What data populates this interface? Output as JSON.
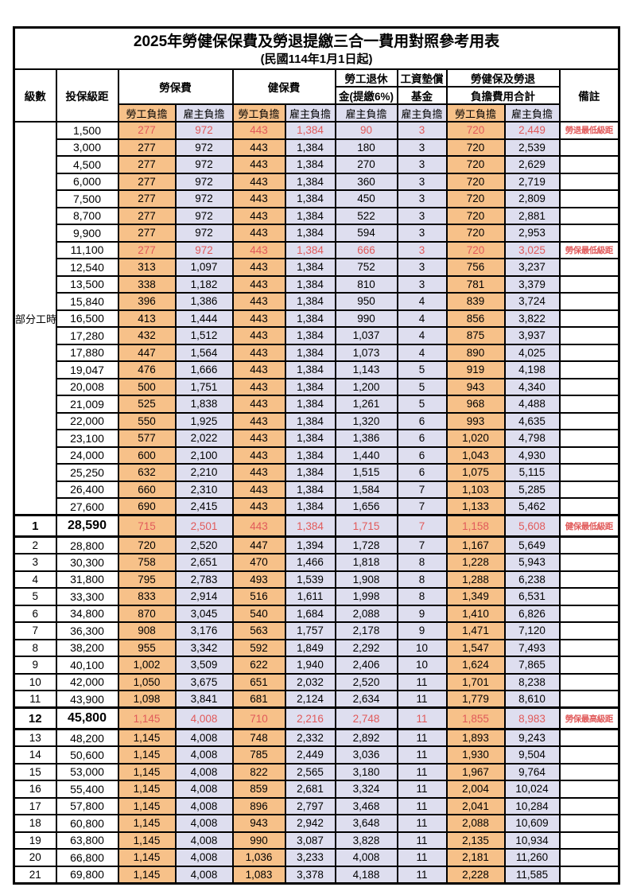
{
  "title": "2025年勞健保保費及勞退提繳三合一費用對照參考用表",
  "subtitle": "(民國114年1月1日起)",
  "colors": {
    "employee_column_bg": "#f7c189",
    "employer_column_bg": "#dedeef",
    "highlight_text": "#e15a5a",
    "border": "#000000"
  },
  "header": {
    "level": "級數",
    "bracket": "投保級距",
    "labor_ins": "勞保費",
    "health_ins": "健保費",
    "pension_l1": "勞工退休",
    "pension_l2": "金(提繳6%)",
    "wage_fund_l1": "工資墊償",
    "wage_fund_l2": "基金",
    "total_l1": "勞健保及勞退",
    "total_l2": "負擔費用合計",
    "note": "備註",
    "employee": "勞工負擔",
    "employer": "雇主負擔"
  },
  "table": {
    "part_time_label": "部分工時",
    "part_time_rowspan": 23,
    "rows": [
      {
        "level": "",
        "bracket": "1,500",
        "v": [
          "277",
          "972",
          "443",
          "1,384",
          "90",
          "3",
          "720",
          "2,449"
        ],
        "note": "勞退最低級距",
        "red": true
      },
      {
        "level": "",
        "bracket": "3,000",
        "v": [
          "277",
          "972",
          "443",
          "1,384",
          "180",
          "3",
          "720",
          "2,539"
        ]
      },
      {
        "level": "",
        "bracket": "4,500",
        "v": [
          "277",
          "972",
          "443",
          "1,384",
          "270",
          "3",
          "720",
          "2,629"
        ]
      },
      {
        "level": "",
        "bracket": "6,000",
        "v": [
          "277",
          "972",
          "443",
          "1,384",
          "360",
          "3",
          "720",
          "2,719"
        ]
      },
      {
        "level": "",
        "bracket": "7,500",
        "v": [
          "277",
          "972",
          "443",
          "1,384",
          "450",
          "3",
          "720",
          "2,809"
        ]
      },
      {
        "level": "",
        "bracket": "8,700",
        "v": [
          "277",
          "972",
          "443",
          "1,384",
          "522",
          "3",
          "720",
          "2,881"
        ]
      },
      {
        "level": "",
        "bracket": "9,900",
        "v": [
          "277",
          "972",
          "443",
          "1,384",
          "594",
          "3",
          "720",
          "2,953"
        ]
      },
      {
        "level": "",
        "bracket": "11,100",
        "v": [
          "277",
          "972",
          "443",
          "1,384",
          "666",
          "3",
          "720",
          "3,025"
        ],
        "note": "勞保最低級距",
        "red": true
      },
      {
        "level": "",
        "bracket": "12,540",
        "v": [
          "313",
          "1,097",
          "443",
          "1,384",
          "752",
          "3",
          "756",
          "3,237"
        ]
      },
      {
        "level": "",
        "bracket": "13,500",
        "v": [
          "338",
          "1,182",
          "443",
          "1,384",
          "810",
          "3",
          "781",
          "3,379"
        ]
      },
      {
        "level": "",
        "bracket": "15,840",
        "v": [
          "396",
          "1,386",
          "443",
          "1,384",
          "950",
          "4",
          "839",
          "3,724"
        ]
      },
      {
        "level": "",
        "bracket": "16,500",
        "v": [
          "413",
          "1,444",
          "443",
          "1,384",
          "990",
          "4",
          "856",
          "3,822"
        ]
      },
      {
        "level": "",
        "bracket": "17,280",
        "v": [
          "432",
          "1,512",
          "443",
          "1,384",
          "1,037",
          "4",
          "875",
          "3,937"
        ]
      },
      {
        "level": "",
        "bracket": "17,880",
        "v": [
          "447",
          "1,564",
          "443",
          "1,384",
          "1,073",
          "4",
          "890",
          "4,025"
        ]
      },
      {
        "level": "",
        "bracket": "19,047",
        "v": [
          "476",
          "1,666",
          "443",
          "1,384",
          "1,143",
          "5",
          "919",
          "4,198"
        ]
      },
      {
        "level": "",
        "bracket": "20,008",
        "v": [
          "500",
          "1,751",
          "443",
          "1,384",
          "1,200",
          "5",
          "943",
          "4,340"
        ]
      },
      {
        "level": "",
        "bracket": "21,009",
        "v": [
          "525",
          "1,838",
          "443",
          "1,384",
          "1,261",
          "5",
          "968",
          "4,488"
        ]
      },
      {
        "level": "",
        "bracket": "22,000",
        "v": [
          "550",
          "1,925",
          "443",
          "1,384",
          "1,320",
          "6",
          "993",
          "4,635"
        ]
      },
      {
        "level": "",
        "bracket": "23,100",
        "v": [
          "577",
          "2,022",
          "443",
          "1,384",
          "1,386",
          "6",
          "1,020",
          "4,798"
        ]
      },
      {
        "level": "",
        "bracket": "24,000",
        "v": [
          "600",
          "2,100",
          "443",
          "1,384",
          "1,440",
          "6",
          "1,043",
          "4,930"
        ]
      },
      {
        "level": "",
        "bracket": "25,250",
        "v": [
          "632",
          "2,210",
          "443",
          "1,384",
          "1,515",
          "6",
          "1,075",
          "5,115"
        ]
      },
      {
        "level": "",
        "bracket": "26,400",
        "v": [
          "660",
          "2,310",
          "443",
          "1,384",
          "1,584",
          "7",
          "1,103",
          "5,285"
        ]
      },
      {
        "level": "",
        "bracket": "27,600",
        "v": [
          "690",
          "2,415",
          "443",
          "1,384",
          "1,656",
          "7",
          "1,133",
          "5,462"
        ]
      },
      {
        "level": "1",
        "bracket": "28,590",
        "v": [
          "715",
          "2,501",
          "443",
          "1,384",
          "1,715",
          "7",
          "1,158",
          "5,608"
        ],
        "note": "健保最低級距",
        "red": true,
        "em": true
      },
      {
        "level": "2",
        "bracket": "28,800",
        "v": [
          "720",
          "2,520",
          "447",
          "1,394",
          "1,728",
          "7",
          "1,167",
          "5,649"
        ]
      },
      {
        "level": "3",
        "bracket": "30,300",
        "v": [
          "758",
          "2,651",
          "470",
          "1,466",
          "1,818",
          "8",
          "1,228",
          "5,943"
        ]
      },
      {
        "level": "4",
        "bracket": "31,800",
        "v": [
          "795",
          "2,783",
          "493",
          "1,539",
          "1,908",
          "8",
          "1,288",
          "6,238"
        ]
      },
      {
        "level": "5",
        "bracket": "33,300",
        "v": [
          "833",
          "2,914",
          "516",
          "1,611",
          "1,998",
          "8",
          "1,349",
          "6,531"
        ]
      },
      {
        "level": "6",
        "bracket": "34,800",
        "v": [
          "870",
          "3,045",
          "540",
          "1,684",
          "2,088",
          "9",
          "1,410",
          "6,826"
        ]
      },
      {
        "level": "7",
        "bracket": "36,300",
        "v": [
          "908",
          "3,176",
          "563",
          "1,757",
          "2,178",
          "9",
          "1,471",
          "7,120"
        ]
      },
      {
        "level": "8",
        "bracket": "38,200",
        "v": [
          "955",
          "3,342",
          "592",
          "1,849",
          "2,292",
          "10",
          "1,547",
          "7,493"
        ]
      },
      {
        "level": "9",
        "bracket": "40,100",
        "v": [
          "1,002",
          "3,509",
          "622",
          "1,940",
          "2,406",
          "10",
          "1,624",
          "7,865"
        ]
      },
      {
        "level": "10",
        "bracket": "42,000",
        "v": [
          "1,050",
          "3,675",
          "651",
          "2,032",
          "2,520",
          "11",
          "1,701",
          "8,238"
        ]
      },
      {
        "level": "11",
        "bracket": "43,900",
        "v": [
          "1,098",
          "3,841",
          "681",
          "2,124",
          "2,634",
          "11",
          "1,779",
          "8,610"
        ]
      },
      {
        "level": "12",
        "bracket": "45,800",
        "v": [
          "1,145",
          "4,008",
          "710",
          "2,216",
          "2,748",
          "11",
          "1,855",
          "8,983"
        ],
        "note": "勞保最高級距",
        "red": true,
        "em": true
      },
      {
        "level": "13",
        "bracket": "48,200",
        "v": [
          "1,145",
          "4,008",
          "748",
          "2,332",
          "2,892",
          "11",
          "1,893",
          "9,243"
        ]
      },
      {
        "level": "14",
        "bracket": "50,600",
        "v": [
          "1,145",
          "4,008",
          "785",
          "2,449",
          "3,036",
          "11",
          "1,930",
          "9,504"
        ]
      },
      {
        "level": "15",
        "bracket": "53,000",
        "v": [
          "1,145",
          "4,008",
          "822",
          "2,565",
          "3,180",
          "11",
          "1,967",
          "9,764"
        ]
      },
      {
        "level": "16",
        "bracket": "55,400",
        "v": [
          "1,145",
          "4,008",
          "859",
          "2,681",
          "3,324",
          "11",
          "2,004",
          "10,024"
        ]
      },
      {
        "level": "17",
        "bracket": "57,800",
        "v": [
          "1,145",
          "4,008",
          "896",
          "2,797",
          "3,468",
          "11",
          "2,041",
          "10,284"
        ]
      },
      {
        "level": "18",
        "bracket": "60,800",
        "v": [
          "1,145",
          "4,008",
          "943",
          "2,942",
          "3,648",
          "11",
          "2,088",
          "10,609"
        ]
      },
      {
        "level": "19",
        "bracket": "63,800",
        "v": [
          "1,145",
          "4,008",
          "990",
          "3,087",
          "3,828",
          "11",
          "2,135",
          "10,934"
        ]
      },
      {
        "level": "20",
        "bracket": "66,800",
        "v": [
          "1,145",
          "4,008",
          "1,036",
          "3,233",
          "4,008",
          "11",
          "2,181",
          "11,260"
        ]
      },
      {
        "level": "21",
        "bracket": "69,800",
        "v": [
          "1,145",
          "4,008",
          "1,083",
          "3,378",
          "4,188",
          "11",
          "2,228",
          "11,585"
        ]
      }
    ]
  }
}
